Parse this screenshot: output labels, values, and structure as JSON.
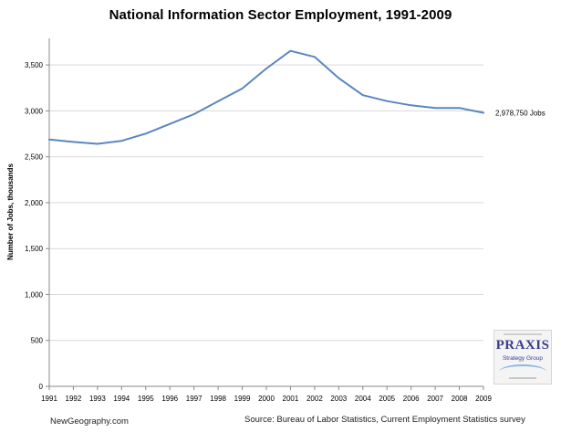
{
  "chart_data": {
    "type": "line",
    "title": "National Information Sector Employment, 1991-2009",
    "ylabel": "Number of Jobs, thousands",
    "xlabel": "",
    "x": [
      "1991",
      "1992",
      "1993",
      "1994",
      "1995",
      "1996",
      "1997",
      "1998",
      "1999",
      "2000",
      "2001",
      "2002",
      "2003",
      "2004",
      "2005",
      "2006",
      "2007",
      "2008",
      "2009"
    ],
    "series": [
      {
        "values": [
          2688,
          2662,
          2641,
          2674,
          2752,
          2858,
          2964,
          3104,
          3244,
          3462,
          3654,
          3588,
          3357,
          3171,
          3106,
          3061,
          3032,
          3032,
          2979
        ]
      }
    ],
    "ylim": [
      0,
      3750
    ],
    "yticks": [
      0,
      500,
      1000,
      1500,
      2000,
      2500,
      3000,
      3500
    ],
    "ytick_labels": [
      "0",
      "500",
      "1,000",
      "1,500",
      "2,000",
      "2,500",
      "3,000",
      "3,500"
    ],
    "grid": true,
    "line_color": "#5b86bf",
    "end_label": "2,978,750 Jobs"
  },
  "footer": {
    "left": "NewGeography.com",
    "source": "Source:  Bureau of Labor Statistics, Current Employment Statistics survey"
  },
  "logo": {
    "name": "PRAXIS",
    "subtitle": "Strategy Group"
  }
}
